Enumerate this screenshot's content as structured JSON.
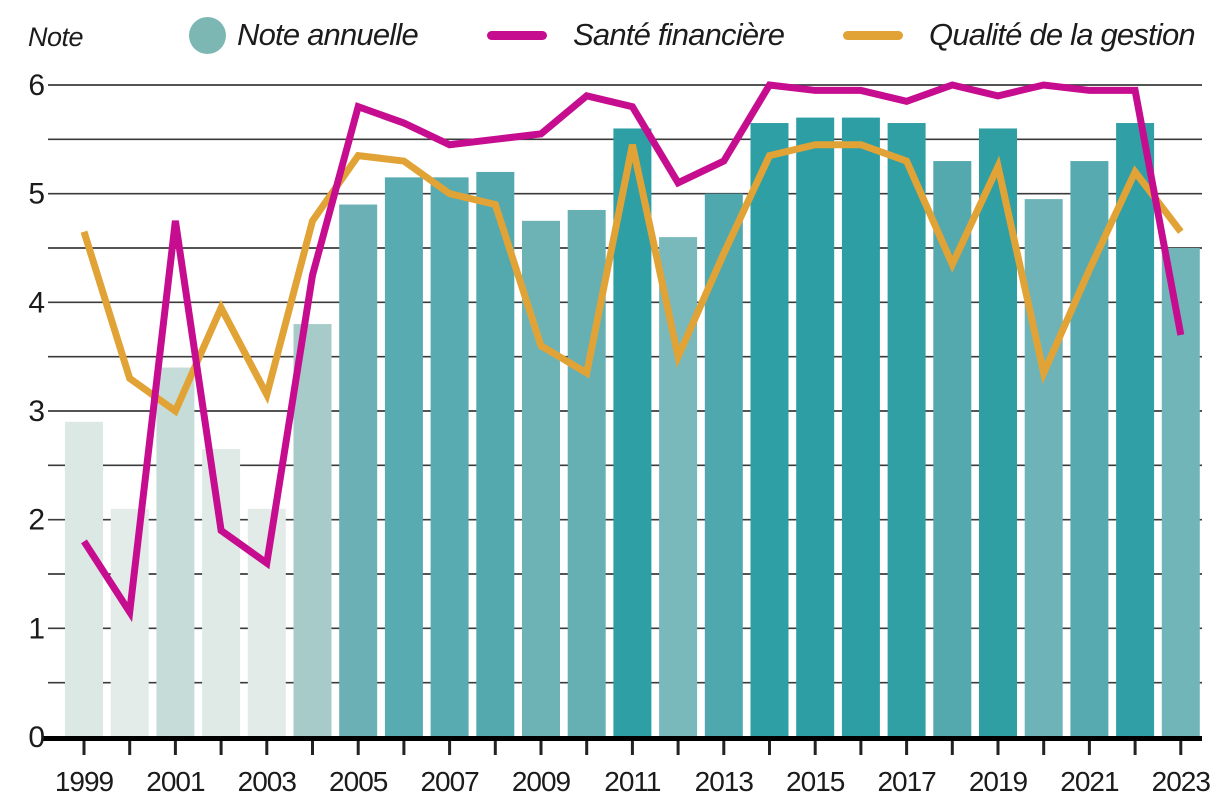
{
  "page": {
    "background": "#ffffff",
    "text_color": "#1c1c1c"
  },
  "axis_title": "Note",
  "legend": {
    "items": [
      {
        "label": "Note annuelle",
        "swatch": "dot",
        "color": "#7db7b3"
      },
      {
        "label": "Santé financière",
        "swatch": "line",
        "color": "#c60d8f"
      },
      {
        "label": "Qualité de la gestion",
        "swatch": "line",
        "color": "#e2a336"
      }
    ]
  },
  "chart_data": {
    "type": "combo-bar-line",
    "title": "",
    "ylabel": "Note",
    "ylim": [
      0,
      6
    ],
    "ytick_step": 1,
    "grid_step": 0.5,
    "grid": true,
    "legend_position": "top",
    "axis_color": "#000000",
    "gridline_color": "#3b3b3b",
    "tick_color": "#222222",
    "categories": [
      1999,
      2000,
      2001,
      2002,
      2003,
      2004,
      2005,
      2006,
      2007,
      2008,
      2009,
      2010,
      2011,
      2012,
      2013,
      2014,
      2015,
      2016,
      2017,
      2018,
      2019,
      2020,
      2021,
      2022,
      2023
    ],
    "xtick_labels_shown": [
      "1999",
      "2001",
      "2003",
      "2005",
      "2007",
      "2009",
      "2011",
      "2013",
      "2015",
      "2017",
      "2019",
      "2021",
      "2023"
    ],
    "series": [
      {
        "name": "Note annuelle",
        "type": "bar",
        "values": [
          2.9,
          2.1,
          3.4,
          2.65,
          2.1,
          3.8,
          4.9,
          5.15,
          5.15,
          5.2,
          4.75,
          4.85,
          5.6,
          4.6,
          5.0,
          5.65,
          5.7,
          5.7,
          5.65,
          5.3,
          5.6,
          4.95,
          5.3,
          5.65,
          4.5
        ],
        "bar_colors": [
          "#dbe8e4",
          "#e3ece9",
          "#c6dcd9",
          "#dfeae6",
          "#e2ebe8",
          "#a7cbc9",
          "#6ab0b4",
          "#58abb0",
          "#58abb0",
          "#54a9ae",
          "#6db3b6",
          "#66b0b4",
          "#2e9fa5",
          "#79b8bb",
          "#4fa8ae",
          "#2e9fa5",
          "#2c9ea4",
          "#2c9ea4",
          "#30a0a5",
          "#53a9ae",
          "#2f9fa4",
          "#6eb3b7",
          "#57abb0",
          "#30a0a6",
          "#71b5b9"
        ]
      },
      {
        "name": "Santé financière",
        "type": "line",
        "color": "#c60d8f",
        "values": [
          1.8,
          1.15,
          4.75,
          1.9,
          1.6,
          4.25,
          5.8,
          5.65,
          5.45,
          5.5,
          5.55,
          5.9,
          5.8,
          5.1,
          5.3,
          6.0,
          5.95,
          5.95,
          5.85,
          6.0,
          5.9,
          6.0,
          5.95,
          5.95,
          3.7
        ]
      },
      {
        "name": "Qualité de la gestion",
        "type": "line",
        "color": "#e2a336",
        "values": [
          4.65,
          3.3,
          3.0,
          3.95,
          3.15,
          4.75,
          5.35,
          5.3,
          5.0,
          4.9,
          3.6,
          3.35,
          5.45,
          3.5,
          4.45,
          5.35,
          5.45,
          5.45,
          5.3,
          4.35,
          5.25,
          3.35,
          4.3,
          5.2,
          4.65
        ]
      }
    ]
  }
}
